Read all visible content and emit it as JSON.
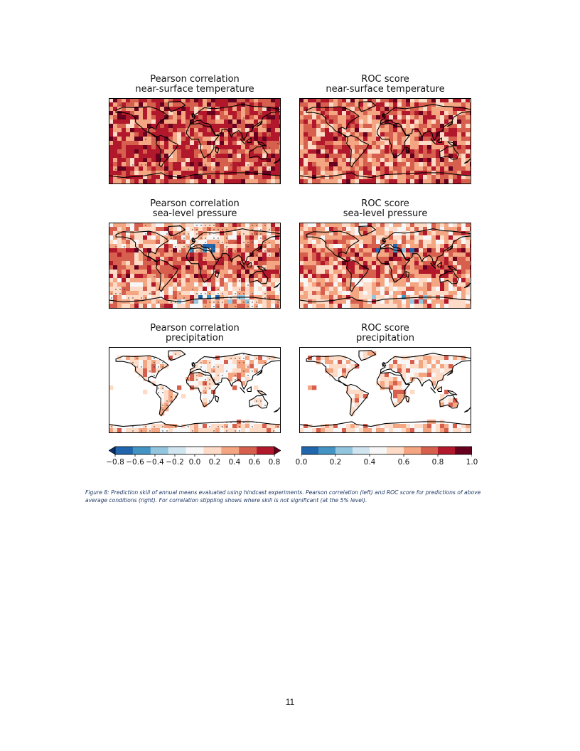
{
  "figure": {
    "panels": [
      {
        "title_line1": "Pearson correlation",
        "title_line2": "near-surface temperature",
        "metric": "pearson",
        "variable": "temperature"
      },
      {
        "title_line1": "ROC score",
        "title_line2": "near-surface temperature",
        "metric": "roc",
        "variable": "temperature"
      },
      {
        "title_line1": "Pearson correlation",
        "title_line2": "sea-level pressure",
        "metric": "pearson",
        "variable": "pressure"
      },
      {
        "title_line1": "ROC score",
        "title_line2": "sea-level pressure",
        "metric": "roc",
        "variable": "pressure"
      },
      {
        "title_line1": "Pearson correlation",
        "title_line2": "precipitation",
        "metric": "pearson",
        "variable": "precipitation"
      },
      {
        "title_line1": "ROC score",
        "title_line2": "precipitation",
        "metric": "roc",
        "variable": "precipitation"
      }
    ],
    "colorbar_correlation": {
      "ticks": [
        "−0.8",
        "−0.6",
        "−0.4",
        "−0.2",
        "0.0",
        "0.2",
        "0.4",
        "0.6",
        "0.8"
      ],
      "colors": [
        "#08306b",
        "#2166ac",
        "#4393c3",
        "#92c5de",
        "#d1e5f0",
        "#f7f7f7",
        "#fddbc7",
        "#f4a582",
        "#d6604d",
        "#b2182b",
        "#67001f"
      ],
      "range": [
        -0.8,
        0.8
      ],
      "extend": "both"
    },
    "colorbar_roc": {
      "ticks": [
        "0.0",
        "0.2",
        "0.4",
        "0.6",
        "0.8",
        "1.0"
      ],
      "colors": [
        "#2166ac",
        "#4393c3",
        "#92c5de",
        "#d1e5f0",
        "#f7f7f7",
        "#fddbc7",
        "#f4a582",
        "#d6604d",
        "#b2182b",
        "#67001f"
      ],
      "range": [
        0.0,
        1.0
      ]
    },
    "caption": "Figure 8: Prediction skill of annual means evaluated using hindcast experiments. Pearson correlation (left) and ROC score for predictions of above average conditions (right). For correlation stippling shows where skill is not significant (at the 5% level)."
  },
  "page_number": "11"
}
